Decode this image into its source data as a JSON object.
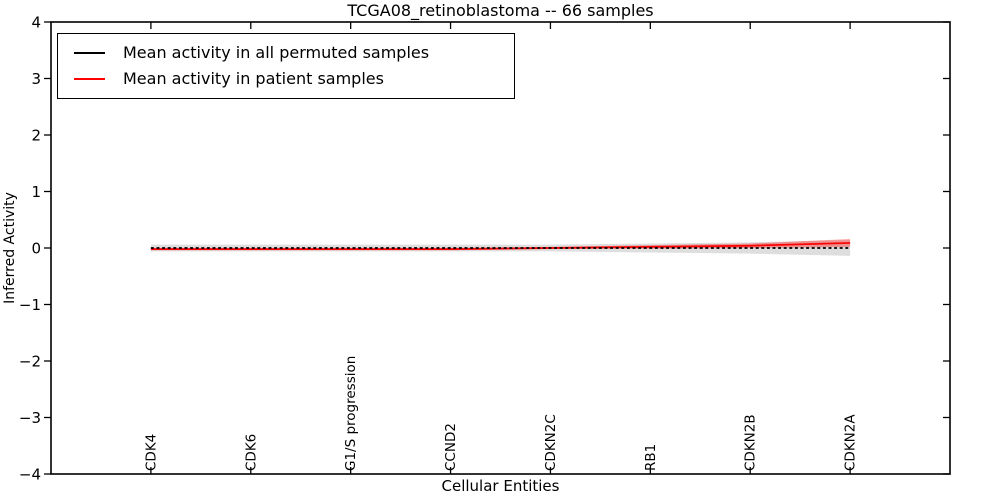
{
  "chart_data": {
    "type": "line",
    "title": "TCGA08_retinoblastoma -- 66 samples",
    "xlabel": "Cellular Entities",
    "ylabel": "Inferred Activity",
    "ylim": [
      -4,
      4
    ],
    "yticks": [
      4,
      3,
      2,
      1,
      0,
      -1,
      -2,
      -3,
      -4
    ],
    "grid": false,
    "legend_position": "upper left",
    "categories": [
      "CDK4",
      "CDK6",
      "G1/S progression",
      "CCND2",
      "CDKN2C",
      "RB1",
      "CDKN2B",
      "CDKN2A"
    ],
    "series": [
      {
        "name": "Mean activity in all permuted samples",
        "color": "#000000",
        "line_style": "dashed",
        "values": [
          0.0,
          0.0,
          0.0,
          0.0,
          0.0,
          0.0,
          0.0,
          0.0
        ],
        "band_halfwidth": [
          0.06,
          0.06,
          0.06,
          0.06,
          0.06,
          0.08,
          0.1,
          0.14
        ],
        "band_color": "rgba(0,0,0,0.13)"
      },
      {
        "name": "Mean activity in patient samples",
        "color": "#ff0000",
        "line_style": "solid",
        "values": [
          -0.02,
          -0.02,
          -0.02,
          -0.02,
          0.0,
          0.02,
          0.04,
          0.09
        ],
        "band_halfwidth": [
          0.02,
          0.02,
          0.02,
          0.02,
          0.02,
          0.03,
          0.04,
          0.07
        ],
        "band_color": "rgba(255,0,0,0.35)"
      }
    ]
  }
}
